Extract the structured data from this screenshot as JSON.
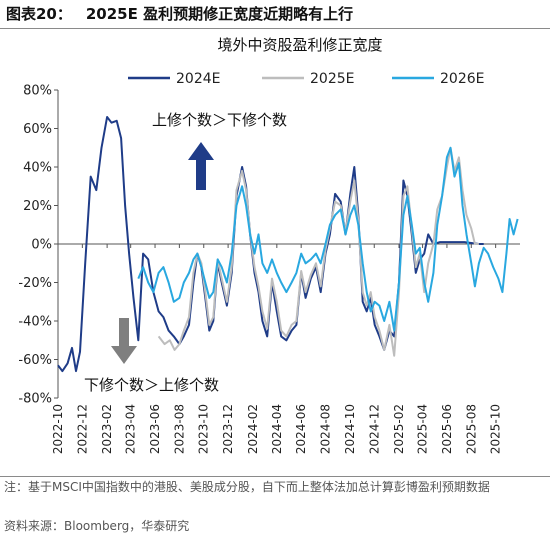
{
  "figure": {
    "number": "图表20：",
    "title": "2025E 盈利预期修正宽度近期略有上行"
  },
  "note": "注：基于MSCI中国指数中的港股、美股成分股，自下而上整体法加总计算彭博盈利预期数据",
  "source": "资料来源：Bloomberg，华泰研究",
  "colors": {
    "s2024": "#1f3c88",
    "s2025": "#bdbdbd",
    "s2026": "#29a8e0",
    "arrow_up": "#1f3c88",
    "arrow_down": "#7f7f7f"
  },
  "chart_data": {
    "type": "line",
    "title": "境外中资股盈利修正宽度",
    "ylim": [
      -80,
      80
    ],
    "yticks": [
      -80,
      -60,
      -40,
      -20,
      0,
      20,
      40,
      60,
      80
    ],
    "yticklabels": [
      "-80%",
      "-60%",
      "-40%",
      "-20%",
      "0%",
      "20%",
      "40%",
      "60%",
      "80%"
    ],
    "xlim": [
      "2022-10",
      "2025-12"
    ],
    "xticks": [
      "2022-10",
      "2022-12",
      "2023-02",
      "2023-04",
      "2023-06",
      "2023-08",
      "2023-10",
      "2023-12",
      "2024-02",
      "2024-04",
      "2024-06",
      "2024-08",
      "2024-10",
      "2024-12",
      "2025-02",
      "2025-04",
      "2025-06",
      "2025-08",
      "2025-10"
    ],
    "legend_position": "top",
    "grid": false,
    "annotations": {
      "upper": "上修个数＞下修个数",
      "lower": "下修个数＞上修个数"
    },
    "series": [
      {
        "name": "2024E",
        "points": [
          [
            "2022-10-01",
            -63
          ],
          [
            "2022-10-12",
            -66
          ],
          [
            "2022-10-25",
            -62
          ],
          [
            "2022-11-05",
            -54
          ],
          [
            "2022-11-15",
            -66
          ],
          [
            "2022-11-25",
            -56
          ],
          [
            "2022-12-08",
            -10
          ],
          [
            "2022-12-22",
            35
          ],
          [
            "2023-01-05",
            28
          ],
          [
            "2023-01-18",
            50
          ],
          [
            "2023-02-01",
            66
          ],
          [
            "2023-02-12",
            63
          ],
          [
            "2023-02-25",
            64
          ],
          [
            "2023-03-08",
            55
          ],
          [
            "2023-03-18",
            20
          ],
          [
            "2023-03-28",
            -5
          ],
          [
            "2023-04-08",
            -28
          ],
          [
            "2023-04-20",
            -50
          ],
          [
            "2023-05-02",
            -5
          ],
          [
            "2023-05-15",
            -8
          ],
          [
            "2023-05-28",
            -25
          ],
          [
            "2023-06-10",
            -35
          ],
          [
            "2023-06-22",
            -38
          ],
          [
            "2023-07-05",
            -45
          ],
          [
            "2023-07-18",
            -48
          ],
          [
            "2023-08-01",
            -52
          ],
          [
            "2023-08-12",
            -48
          ],
          [
            "2023-08-25",
            -42
          ],
          [
            "2023-09-05",
            -20
          ],
          [
            "2023-09-15",
            -5
          ],
          [
            "2023-09-25",
            -12
          ],
          [
            "2023-10-05",
            -28
          ],
          [
            "2023-10-15",
            -45
          ],
          [
            "2023-10-25",
            -40
          ],
          [
            "2023-11-05",
            -10
          ],
          [
            "2023-11-15",
            -20
          ],
          [
            "2023-11-28",
            -32
          ],
          [
            "2023-12-10",
            -15
          ],
          [
            "2023-12-22",
            25
          ],
          [
            "2024-01-05",
            40
          ],
          [
            "2024-01-15",
            30
          ],
          [
            "2024-01-25",
            5
          ],
          [
            "2024-02-05",
            -15
          ],
          [
            "2024-02-15",
            -25
          ],
          [
            "2024-02-25",
            -40
          ],
          [
            "2024-03-08",
            -48
          ],
          [
            "2024-03-20",
            -20
          ],
          [
            "2024-04-01",
            -35
          ],
          [
            "2024-04-12",
            -48
          ],
          [
            "2024-04-25",
            -50
          ],
          [
            "2024-05-08",
            -45
          ],
          [
            "2024-05-20",
            -42
          ],
          [
            "2024-06-01",
            -15
          ],
          [
            "2024-06-12",
            -28
          ],
          [
            "2024-06-25",
            -18
          ],
          [
            "2024-07-08",
            -12
          ],
          [
            "2024-07-20",
            -25
          ],
          [
            "2024-08-01",
            -5
          ],
          [
            "2024-08-12",
            5
          ],
          [
            "2024-08-25",
            26
          ],
          [
            "2024-09-08",
            22
          ],
          [
            "2024-09-20",
            5
          ],
          [
            "2024-10-02",
            26
          ],
          [
            "2024-10-12",
            40
          ],
          [
            "2024-10-22",
            15
          ],
          [
            "2024-11-02",
            -30
          ],
          [
            "2024-11-12",
            -35
          ],
          [
            "2024-11-22",
            -28
          ],
          [
            "2024-12-02",
            -42
          ],
          [
            "2024-12-14",
            -48
          ],
          [
            "2024-12-26",
            -55
          ],
          [
            "2025-01-08",
            -45
          ],
          [
            "2025-01-20",
            -48
          ],
          [
            "2025-02-01",
            -20
          ],
          [
            "2025-02-12",
            33
          ],
          [
            "2025-02-22",
            25
          ],
          [
            "2025-03-05",
            5
          ],
          [
            "2025-03-15",
            -15
          ],
          [
            "2025-03-25",
            -8
          ],
          [
            "2025-04-05",
            -5
          ],
          [
            "2025-04-15",
            5
          ],
          [
            "2025-04-28",
            0
          ],
          [
            "2025-05-15",
            1
          ],
          [
            "2025-06-10",
            1
          ],
          [
            "2025-07-15",
            1
          ],
          [
            "2025-08-20",
            0
          ],
          [
            "2025-09-01",
            0
          ]
        ]
      },
      {
        "name": "2025E",
        "points": [
          [
            "2023-06-10",
            -48
          ],
          [
            "2023-06-25",
            -52
          ],
          [
            "2023-07-08",
            -50
          ],
          [
            "2023-07-20",
            -55
          ],
          [
            "2023-08-01",
            -52
          ],
          [
            "2023-08-12",
            -45
          ],
          [
            "2023-08-25",
            -38
          ],
          [
            "2023-09-05",
            -15
          ],
          [
            "2023-09-15",
            -5
          ],
          [
            "2023-09-25",
            -10
          ],
          [
            "2023-10-05",
            -25
          ],
          [
            "2023-10-15",
            -42
          ],
          [
            "2023-10-25",
            -38
          ],
          [
            "2023-11-05",
            -8
          ],
          [
            "2023-11-15",
            -18
          ],
          [
            "2023-11-28",
            -30
          ],
          [
            "2023-12-10",
            -12
          ],
          [
            "2023-12-22",
            28
          ],
          [
            "2024-01-05",
            38
          ],
          [
            "2024-01-15",
            28
          ],
          [
            "2024-01-25",
            6
          ],
          [
            "2024-02-05",
            -12
          ],
          [
            "2024-02-15",
            -22
          ],
          [
            "2024-02-25",
            -35
          ],
          [
            "2024-03-08",
            -44
          ],
          [
            "2024-03-20",
            -18
          ],
          [
            "2024-04-01",
            -30
          ],
          [
            "2024-04-12",
            -45
          ],
          [
            "2024-04-25",
            -48
          ],
          [
            "2024-05-08",
            -42
          ],
          [
            "2024-05-20",
            -40
          ],
          [
            "2024-06-01",
            -14
          ],
          [
            "2024-06-12",
            -25
          ],
          [
            "2024-06-25",
            -16
          ],
          [
            "2024-07-08",
            -10
          ],
          [
            "2024-07-20",
            -22
          ],
          [
            "2024-08-01",
            -3
          ],
          [
            "2024-08-12",
            8
          ],
          [
            "2024-08-25",
            22
          ],
          [
            "2024-09-08",
            20
          ],
          [
            "2024-09-20",
            6
          ],
          [
            "2024-10-02",
            22
          ],
          [
            "2024-10-12",
            33
          ],
          [
            "2024-10-22",
            12
          ],
          [
            "2024-11-02",
            -25
          ],
          [
            "2024-11-12",
            -32
          ],
          [
            "2024-11-22",
            -25
          ],
          [
            "2024-12-02",
            -38
          ],
          [
            "2024-12-14",
            -45
          ],
          [
            "2024-12-26",
            -55
          ],
          [
            "2025-01-08",
            -42
          ],
          [
            "2025-01-20",
            -58
          ],
          [
            "2025-02-01",
            -25
          ],
          [
            "2025-02-12",
            25
          ],
          [
            "2025-02-22",
            30
          ],
          [
            "2025-03-05",
            8
          ],
          [
            "2025-03-15",
            -12
          ],
          [
            "2025-03-25",
            -5
          ],
          [
            "2025-04-05",
            -25
          ],
          [
            "2025-04-15",
            -10
          ],
          [
            "2025-04-28",
            0
          ],
          [
            "2025-05-08",
            18
          ],
          [
            "2025-05-20",
            25
          ],
          [
            "2025-06-01",
            40
          ],
          [
            "2025-06-10",
            50
          ],
          [
            "2025-06-20",
            38
          ],
          [
            "2025-07-01",
            45
          ],
          [
            "2025-07-10",
            28
          ],
          [
            "2025-07-20",
            15
          ],
          [
            "2025-08-01",
            8
          ],
          [
            "2025-08-10",
            0
          ],
          [
            "2025-08-20",
            0
          ]
        ]
      },
      {
        "name": "2026E",
        "points": [
          [
            "2023-04-20",
            -18
          ],
          [
            "2023-05-02",
            -12
          ],
          [
            "2023-05-15",
            -20
          ],
          [
            "2023-05-28",
            -25
          ],
          [
            "2023-06-10",
            -15
          ],
          [
            "2023-06-22",
            -12
          ],
          [
            "2023-07-05",
            -20
          ],
          [
            "2023-07-18",
            -30
          ],
          [
            "2023-08-01",
            -28
          ],
          [
            "2023-08-12",
            -20
          ],
          [
            "2023-08-25",
            -15
          ],
          [
            "2023-09-05",
            -8
          ],
          [
            "2023-09-15",
            -5
          ],
          [
            "2023-09-25",
            -12
          ],
          [
            "2023-10-05",
            -20
          ],
          [
            "2023-10-15",
            -28
          ],
          [
            "2023-10-25",
            -25
          ],
          [
            "2023-11-05",
            -8
          ],
          [
            "2023-11-15",
            -12
          ],
          [
            "2023-11-28",
            -20
          ],
          [
            "2023-12-10",
            -5
          ],
          [
            "2023-12-22",
            20
          ],
          [
            "2024-01-05",
            30
          ],
          [
            "2024-01-15",
            20
          ],
          [
            "2024-01-25",
            5
          ],
          [
            "2024-02-05",
            -5
          ],
          [
            "2024-02-15",
            5
          ],
          [
            "2024-02-25",
            -10
          ],
          [
            "2024-03-08",
            -15
          ],
          [
            "2024-03-20",
            -8
          ],
          [
            "2024-04-01",
            -15
          ],
          [
            "2024-04-12",
            -20
          ],
          [
            "2024-04-25",
            -25
          ],
          [
            "2024-05-08",
            -20
          ],
          [
            "2024-05-20",
            -15
          ],
          [
            "2024-06-01",
            -5
          ],
          [
            "2024-06-12",
            -10
          ],
          [
            "2024-06-25",
            -8
          ],
          [
            "2024-07-08",
            -5
          ],
          [
            "2024-07-20",
            -10
          ],
          [
            "2024-08-01",
            0
          ],
          [
            "2024-08-12",
            10
          ],
          [
            "2024-08-25",
            15
          ],
          [
            "2024-09-08",
            18
          ],
          [
            "2024-09-20",
            5
          ],
          [
            "2024-10-02",
            15
          ],
          [
            "2024-10-12",
            20
          ],
          [
            "2024-10-22",
            10
          ],
          [
            "2024-11-02",
            -10
          ],
          [
            "2024-11-12",
            -25
          ],
          [
            "2024-11-22",
            -35
          ],
          [
            "2024-12-02",
            -30
          ],
          [
            "2024-12-14",
            -32
          ],
          [
            "2024-12-26",
            -40
          ],
          [
            "2025-01-08",
            -30
          ],
          [
            "2025-01-20",
            -45
          ],
          [
            "2025-02-01",
            -20
          ],
          [
            "2025-02-12",
            15
          ],
          [
            "2025-02-22",
            25
          ],
          [
            "2025-03-05",
            10
          ],
          [
            "2025-03-15",
            -5
          ],
          [
            "2025-03-25",
            -2
          ],
          [
            "2025-04-05",
            -20
          ],
          [
            "2025-04-15",
            -30
          ],
          [
            "2025-04-28",
            -15
          ],
          [
            "2025-05-08",
            10
          ],
          [
            "2025-05-20",
            25
          ],
          [
            "2025-06-01",
            45
          ],
          [
            "2025-06-10",
            50
          ],
          [
            "2025-06-20",
            35
          ],
          [
            "2025-07-01",
            42
          ],
          [
            "2025-07-10",
            20
          ],
          [
            "2025-07-20",
            5
          ],
          [
            "2025-08-01",
            -10
          ],
          [
            "2025-08-10",
            -22
          ],
          [
            "2025-08-20",
            -10
          ],
          [
            "2025-09-01",
            -2
          ],
          [
            "2025-09-12",
            -5
          ],
          [
            "2025-09-25",
            -12
          ],
          [
            "2025-10-08",
            -18
          ],
          [
            "2025-10-18",
            -25
          ],
          [
            "2025-10-28",
            -5
          ],
          [
            "2025-11-05",
            13
          ],
          [
            "2025-11-15",
            5
          ],
          [
            "2025-11-25",
            13
          ]
        ]
      }
    ]
  }
}
